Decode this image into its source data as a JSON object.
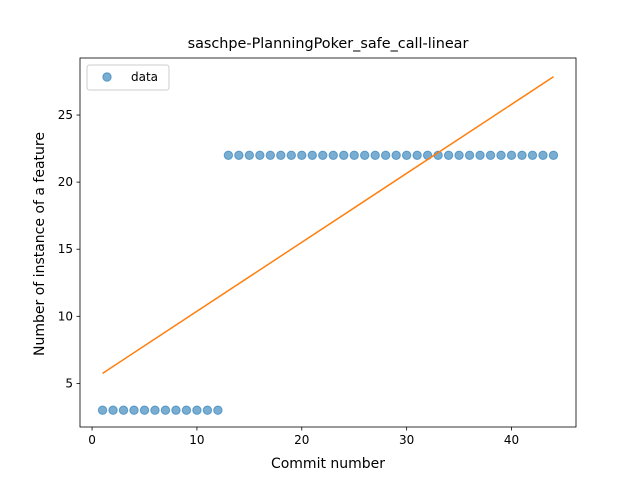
{
  "chart_data": {
    "type": "scatter",
    "title": "saschpe-PlanningPoker_safe_call-linear",
    "xlabel": "Commit number",
    "ylabel": "Number of instance of a feature",
    "xlim": [
      -1.15,
      46.15
    ],
    "ylim": [
      1.75,
      29.25
    ],
    "xticks": [
      0,
      10,
      20,
      30,
      40
    ],
    "yticks": [
      5,
      10,
      15,
      20,
      25
    ],
    "legend": {
      "position": "upper-left",
      "entries": [
        "data"
      ]
    },
    "grid": false,
    "colors": {
      "scatter": "#1f77b4",
      "fit": "#ff7f0e"
    },
    "series": [
      {
        "name": "data",
        "kind": "scatter",
        "x": [
          1,
          2,
          3,
          4,
          5,
          6,
          7,
          8,
          9,
          10,
          11,
          12,
          13,
          14,
          15,
          16,
          17,
          18,
          19,
          20,
          21,
          22,
          23,
          24,
          25,
          26,
          27,
          28,
          29,
          30,
          31,
          32,
          33,
          34,
          35,
          36,
          37,
          38,
          39,
          40,
          41,
          42,
          43,
          44
        ],
        "y": [
          3,
          3,
          3,
          3,
          3,
          3,
          3,
          3,
          3,
          3,
          3,
          3,
          22,
          22,
          22,
          22,
          22,
          22,
          22,
          22,
          22,
          22,
          22,
          22,
          22,
          22,
          22,
          22,
          22,
          22,
          22,
          22,
          22,
          22,
          22,
          22,
          22,
          22,
          22,
          22,
          22,
          22,
          22,
          22
        ]
      },
      {
        "kind": "line",
        "x": [
          1,
          44
        ],
        "y": [
          5.75,
          27.85
        ]
      }
    ]
  }
}
